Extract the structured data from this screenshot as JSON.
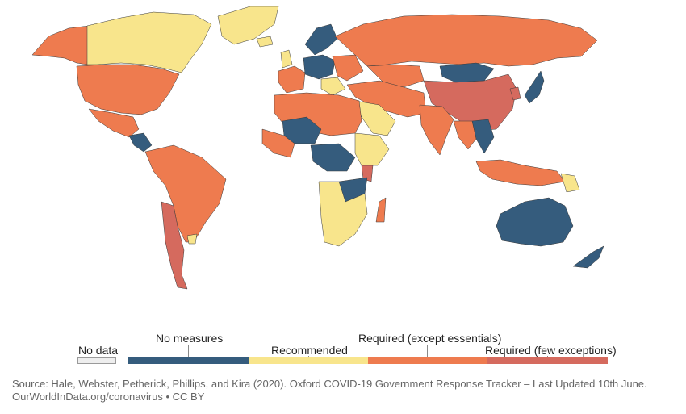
{
  "colors": {
    "no_measures": "#355C7D",
    "recommended": "#F8E58C",
    "required_except_essentials": "#EE7B4F",
    "required_few_exceptions": "#D56A5E",
    "no_data": "#EEEEEE",
    "border": "#3A3A3A"
  },
  "legend": {
    "no_data_label": "No data",
    "no_measures_label": "No measures",
    "recommended_label": "Recommended",
    "required_except_label": "Required (except essentials)",
    "required_few_label": "Required (few exceptions)"
  },
  "source": {
    "line1": "Source: Hale, Webster, Petherick, Phillips, and Kira (2020). Oxford COVID-19 Government Response Tracker – Last Updated 10th June.",
    "line2": "OurWorldInData.org/coronavirus • CC BY"
  },
  "regions": [
    {
      "name": "Canada",
      "level": "recommended"
    },
    {
      "name": "Alaska",
      "level": "required_except_essentials"
    },
    {
      "name": "Greenland",
      "level": "recommended"
    },
    {
      "name": "United States",
      "level": "required_except_essentials"
    },
    {
      "name": "Mexico",
      "level": "required_except_essentials"
    },
    {
      "name": "Central America",
      "level": "no_measures"
    },
    {
      "name": "South America",
      "level": "required_except_essentials"
    },
    {
      "name": "Chile",
      "level": "required_few_exceptions"
    },
    {
      "name": "Uruguay",
      "level": "recommended"
    },
    {
      "name": "Iceland",
      "level": "recommended"
    },
    {
      "name": "Scandinavia",
      "level": "no_measures"
    },
    {
      "name": "United Kingdom",
      "level": "recommended"
    },
    {
      "name": "Western Europe",
      "level": "required_except_essentials"
    },
    {
      "name": "Central Europe",
      "level": "no_measures"
    },
    {
      "name": "Eastern Europe",
      "level": "required_except_essentials"
    },
    {
      "name": "Balkans",
      "level": "recommended"
    },
    {
      "name": "Russia",
      "level": "required_except_essentials"
    },
    {
      "name": "Kazakhstan",
      "level": "required_except_essentials"
    },
    {
      "name": "Mongolia",
      "level": "no_measures"
    },
    {
      "name": "China",
      "level": "required_few_exceptions"
    },
    {
      "name": "Japan",
      "level": "no_measures"
    },
    {
      "name": "Korea",
      "level": "required_few_exceptions"
    },
    {
      "name": "Middle East",
      "level": "required_except_essentials"
    },
    {
      "name": "Saudi Arabia",
      "level": "recommended"
    },
    {
      "name": "India",
      "level": "required_except_essentials"
    },
    {
      "name": "Southeast Asia",
      "level": "required_except_essentials"
    },
    {
      "name": "Indochina",
      "level": "no_measures"
    },
    {
      "name": "Indonesia",
      "level": "required_except_essentials"
    },
    {
      "name": "Papua New Guinea",
      "level": "recommended"
    },
    {
      "name": "North Africa",
      "level": "required_except_essentials"
    },
    {
      "name": "Sahel",
      "level": "no_measures"
    },
    {
      "name": "West Africa",
      "level": "required_except_essentials"
    },
    {
      "name": "Central Africa",
      "level": "no_measures"
    },
    {
      "name": "East Africa",
      "level": "recommended"
    },
    {
      "name": "Kenya",
      "level": "required_few_exceptions"
    },
    {
      "name": "Southern Africa",
      "level": "recommended"
    },
    {
      "name": "Zambia",
      "level": "no_measures"
    },
    {
      "name": "Madagascar",
      "level": "required_except_essentials"
    },
    {
      "name": "Australia",
      "level": "no_measures"
    },
    {
      "name": "New Zealand",
      "level": "no_measures"
    }
  ]
}
